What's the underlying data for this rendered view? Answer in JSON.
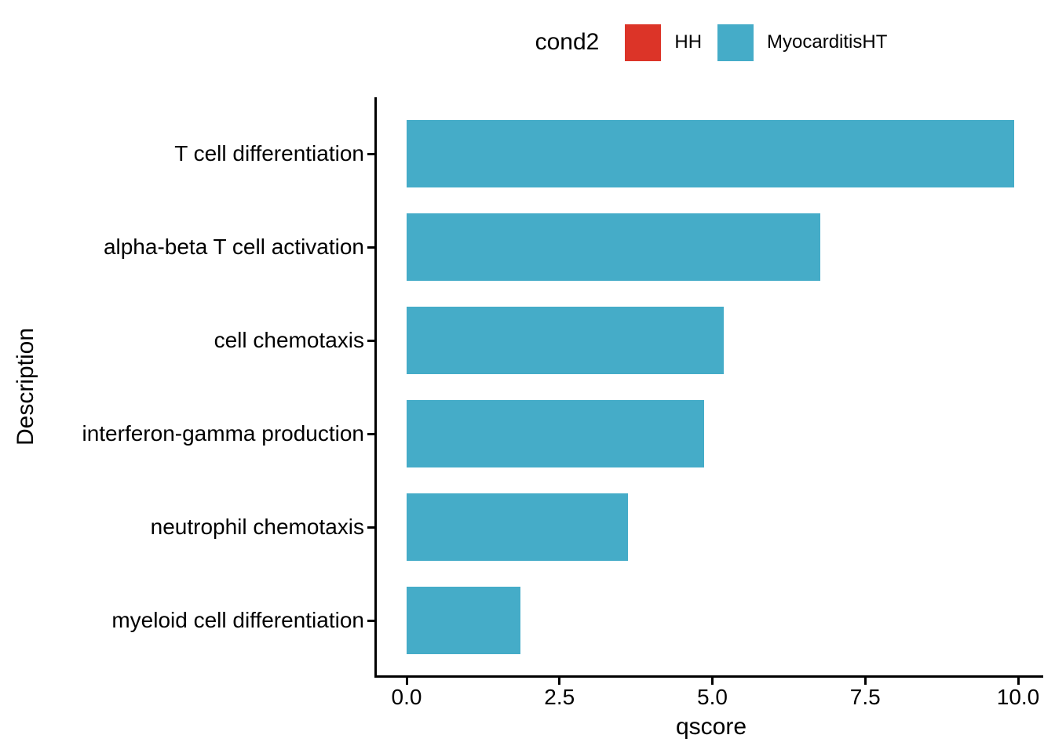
{
  "legend": {
    "title": "cond2",
    "items": [
      {
        "label": "HH",
        "color": "#DC3428"
      },
      {
        "label": "MyocarditisHT",
        "color": "#45ACC8"
      }
    ]
  },
  "chart_data": {
    "type": "bar",
    "orientation": "horizontal",
    "title": "",
    "xlabel": "qscore",
    "ylabel": "Description",
    "categories": [
      "T cell differentiation",
      "alpha-beta T cell activation",
      "cell chemotaxis",
      "interferon-gamma production",
      "neutrophil chemotaxis",
      "myeloid cell differentiation"
    ],
    "series": [
      {
        "name": "MyocarditisHT",
        "color": "#45ACC8",
        "values": [
          9.93,
          6.76,
          5.19,
          4.86,
          3.62,
          1.86
        ]
      }
    ],
    "xlim": [
      0,
      10.4
    ],
    "x_ticks": [
      {
        "value": 0,
        "label": "0.0"
      },
      {
        "value": 2.5,
        "label": "2.5"
      },
      {
        "value": 5,
        "label": "5.0"
      },
      {
        "value": 7.5,
        "label": "7.5"
      },
      {
        "value": 10,
        "label": "10.0"
      }
    ],
    "grid": false,
    "legend_position": "top"
  }
}
